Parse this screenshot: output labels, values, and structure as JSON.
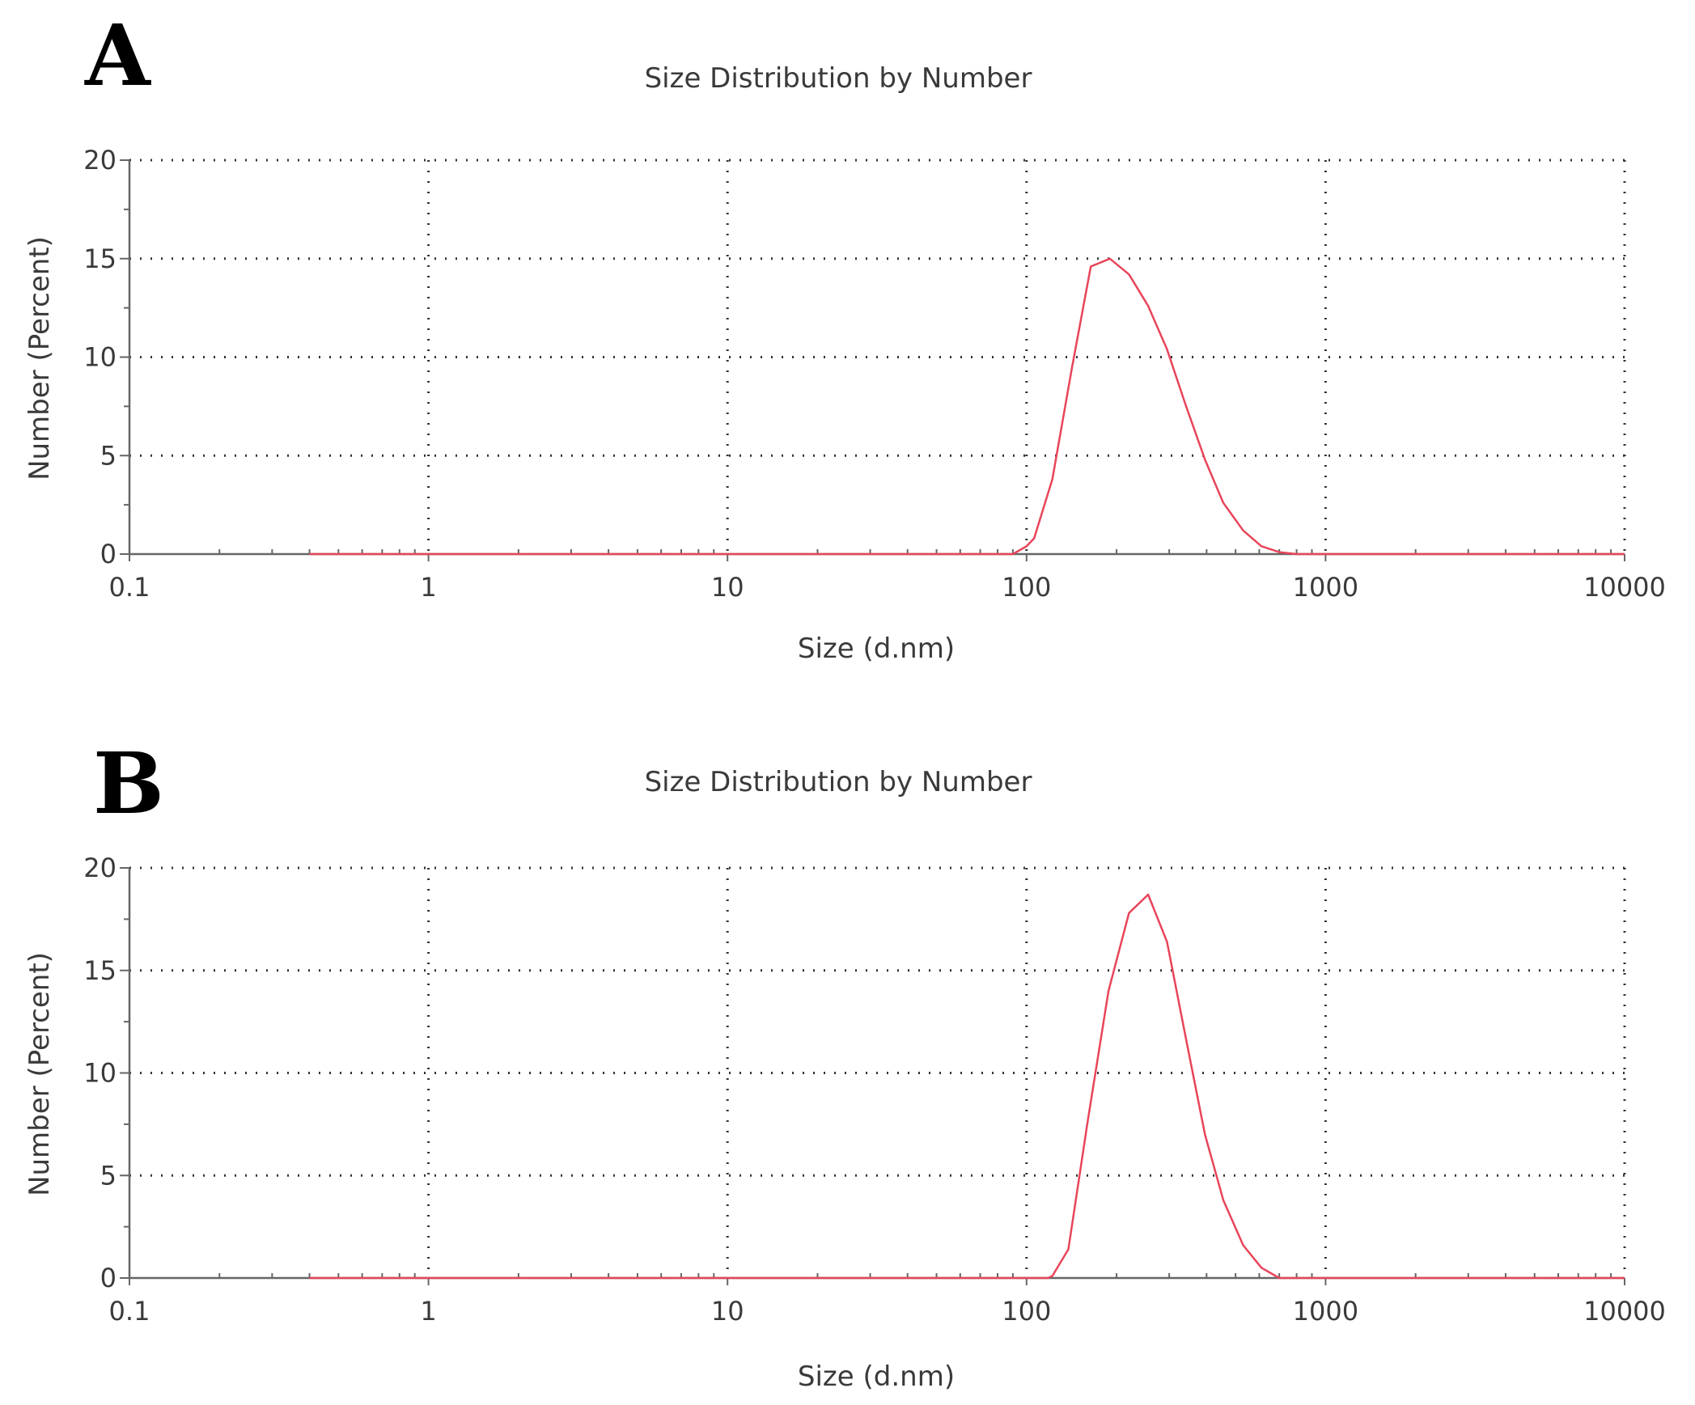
{
  "chart_data": [
    {
      "panel_label": "A",
      "type": "line",
      "title": "Size Distribution by Number",
      "xlabel": "Size (d.nm)",
      "ylabel": "Number (Percent)",
      "x_scale": "log",
      "xlim": [
        0.1,
        10000
      ],
      "ylim": [
        0,
        20
      ],
      "x_ticks": [
        {
          "value": 0.1,
          "label": "0.1"
        },
        {
          "value": 1,
          "label": "1"
        },
        {
          "value": 10,
          "label": "10"
        },
        {
          "value": 100,
          "label": "100"
        },
        {
          "value": 1000,
          "label": "1000"
        },
        {
          "value": 10000,
          "label": "10000"
        }
      ],
      "y_ticks": [
        {
          "value": 0,
          "label": "0"
        },
        {
          "value": 5,
          "label": "5"
        },
        {
          "value": 10,
          "label": "10"
        },
        {
          "value": 15,
          "label": "15"
        },
        {
          "value": 20,
          "label": "20"
        }
      ],
      "grid": true,
      "series_color": "#e8455a",
      "series": [
        {
          "x": [
            0.4,
            90,
            100,
            106,
            122,
            142,
            164,
            190,
            220,
            255,
            295,
            340,
            395,
            455,
            530,
            610,
            700,
            800,
            10000
          ],
          "y": [
            0,
            0,
            0.4,
            0.8,
            3.8,
            9.5,
            14.6,
            15.0,
            14.2,
            12.6,
            10.4,
            7.6,
            4.8,
            2.6,
            1.2,
            0.4,
            0.1,
            0,
            0
          ]
        }
      ]
    },
    {
      "panel_label": "B",
      "type": "line",
      "title": "Size Distribution by Number",
      "xlabel": "Size (d.nm)",
      "ylabel": "Number (Percent)",
      "x_scale": "log",
      "xlim": [
        0.1,
        10000
      ],
      "ylim": [
        0,
        20
      ],
      "x_ticks": [
        {
          "value": 0.1,
          "label": "0.1"
        },
        {
          "value": 1,
          "label": "1"
        },
        {
          "value": 10,
          "label": "10"
        },
        {
          "value": 100,
          "label": "100"
        },
        {
          "value": 1000,
          "label": "1000"
        },
        {
          "value": 10000,
          "label": "10000"
        }
      ],
      "y_ticks": [
        {
          "value": 0,
          "label": "0"
        },
        {
          "value": 5,
          "label": "5"
        },
        {
          "value": 10,
          "label": "10"
        },
        {
          "value": 15,
          "label": "15"
        },
        {
          "value": 20,
          "label": "20"
        }
      ],
      "grid": true,
      "series_color": "#e8455a",
      "series": [
        {
          "x": [
            0.4,
            118,
            122,
            138,
            160,
            188,
            220,
            255,
            295,
            340,
            395,
            455,
            530,
            610,
            700,
            10000
          ],
          "y": [
            0,
            0,
            0.1,
            1.4,
            7.6,
            14.0,
            17.8,
            18.7,
            16.4,
            11.8,
            7.0,
            3.8,
            1.6,
            0.5,
            0,
            0
          ]
        }
      ]
    }
  ]
}
